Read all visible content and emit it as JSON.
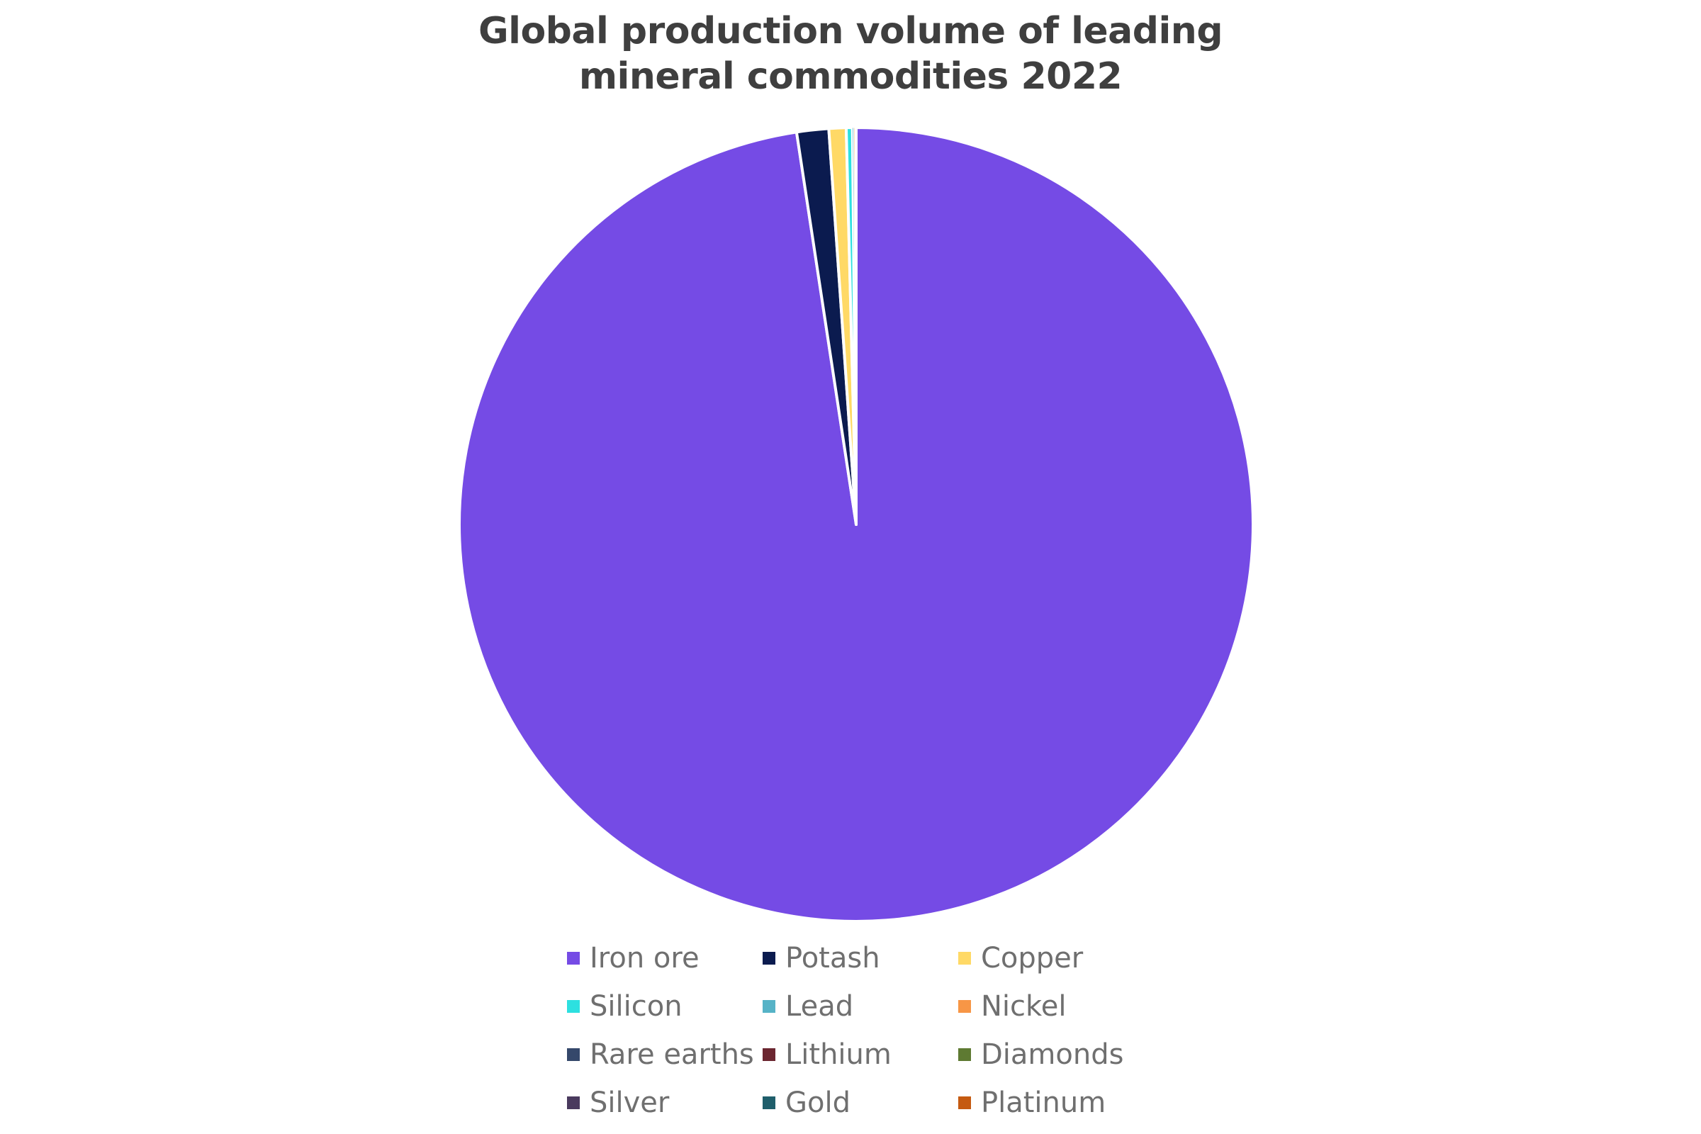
{
  "chart_data": {
    "type": "pie",
    "title": "Global production volume of leading mineral commodities 2022",
    "title_lines": [
      "Global production volume of leading",
      "mineral commodities 2022"
    ],
    "slices": [
      {
        "label": "Iron ore",
        "value": 97.6,
        "color": "#754BE5"
      },
      {
        "label": "Potash",
        "value": 1.3,
        "color": "#0B1B4F"
      },
      {
        "label": "Copper",
        "value": 0.7,
        "color": "#FFD966"
      },
      {
        "label": "Silicon",
        "value": 0.25,
        "color": "#2DE0E0"
      },
      {
        "label": "Lead",
        "value": 0.05,
        "color": "#56B3C7"
      },
      {
        "label": "Nickel",
        "value": 0.04,
        "color": "#F79646"
      },
      {
        "label": "Rare earths",
        "value": 0.02,
        "color": "#35486B"
      },
      {
        "label": "Lithium",
        "value": 0.01,
        "color": "#6B2630"
      },
      {
        "label": "Diamonds",
        "value": 0.01,
        "color": "#5E7A32"
      },
      {
        "label": "Silver",
        "value": 0.01,
        "color": "#4A3A5E"
      },
      {
        "label": "Gold",
        "value": 0.005,
        "color": "#1F5E6B"
      },
      {
        "label": "Platinum",
        "value": 0.005,
        "color": "#C55A11"
      }
    ],
    "legend_position": "bottom",
    "slice_border_color": "#FFFFFF",
    "start_angle": "12 o'clock",
    "direction": "clockwise"
  }
}
